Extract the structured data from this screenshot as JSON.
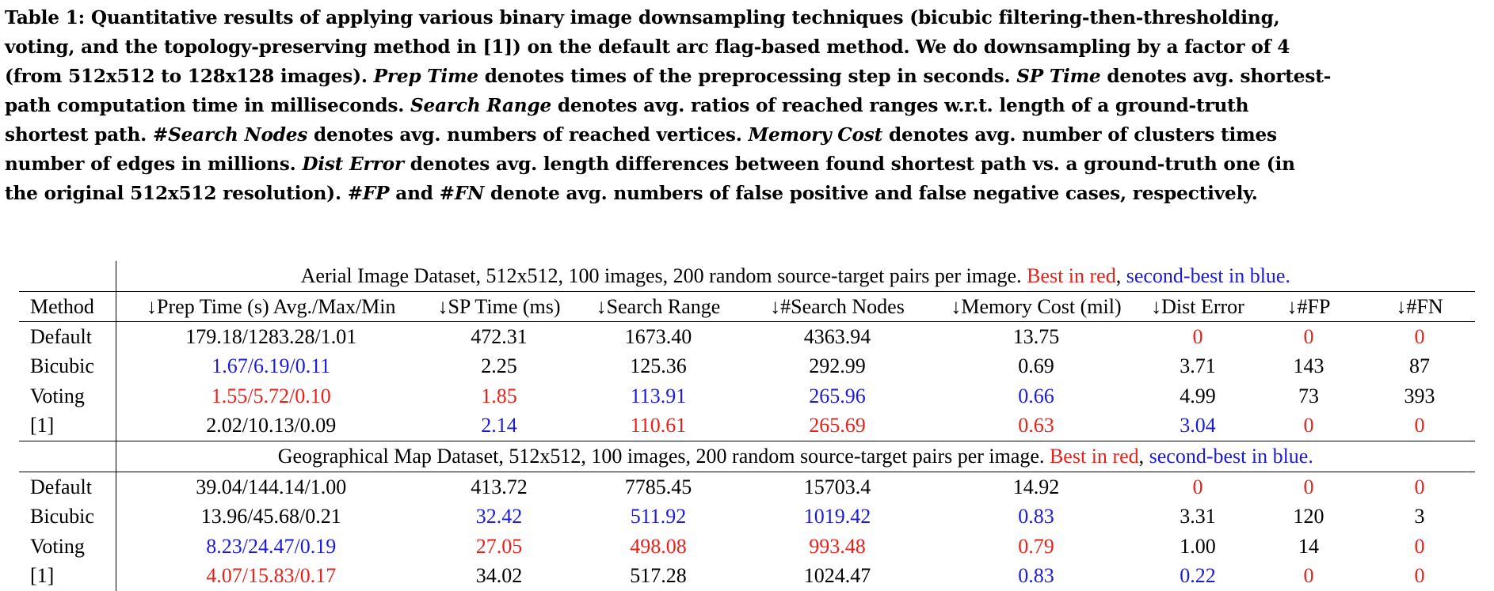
{
  "caption": {
    "lines": [
      [
        {
          "t": "Table 1: Quantitative results of applying various binary image downsampling techniques (bicubic filtering-then-thresholding,",
          "i": false
        }
      ],
      [
        {
          "t": "voting, and the topology-preserving method in [1]) on the default arc flag-based method. We do downsampling by a factor of 4",
          "i": false
        }
      ],
      [
        {
          "t": "(from 512x512 to 128x128 images). ",
          "i": false
        },
        {
          "t": "Prep Time",
          "i": true
        },
        {
          "t": " denotes times of the preprocessing step in seconds. ",
          "i": false
        },
        {
          "t": "SP Time",
          "i": true
        },
        {
          "t": " denotes avg. shortest-",
          "i": false
        }
      ],
      [
        {
          "t": "path computation time in milliseconds. ",
          "i": false
        },
        {
          "t": "Search Range",
          "i": true
        },
        {
          "t": " denotes avg. ratios of reached ranges w.r.t. length of a ground-truth",
          "i": false
        }
      ],
      [
        {
          "t": "shortest path. ",
          "i": false
        },
        {
          "t": "#Search Nodes",
          "i": true
        },
        {
          "t": " denotes avg. numbers of reached vertices. ",
          "i": false
        },
        {
          "t": "Memory Cost",
          "i": true
        },
        {
          "t": " denotes avg. number of clusters times",
          "i": false
        }
      ],
      [
        {
          "t": "number of edges in millions. ",
          "i": false
        },
        {
          "t": "Dist Error",
          "i": true
        },
        {
          "t": " denotes avg. length differences between found shortest path vs. a ground-truth one (in",
          "i": false
        }
      ],
      [
        {
          "t": "the original 512x512 resolution). ",
          "i": false
        },
        {
          "t": "#FP",
          "i": true
        },
        {
          "t": " and ",
          "i": false
        },
        {
          "t": "#FN",
          "i": true
        },
        {
          "t": " denote avg. numbers of false positive and false negative cases, respectively.",
          "i": false
        }
      ]
    ]
  },
  "table": {
    "columns": [
      "Method",
      "↓Prep Time (s) Avg./Max/Min",
      "↓SP Time (ms)",
      "↓Search Range",
      "↓#Search Nodes",
      "↓Memory Cost (mil)",
      "↓Dist Error",
      "↓#FP",
      "↓#FN"
    ],
    "legend": {
      "best": "Best in red",
      "sep": ", ",
      "second": "second-best in blue",
      "end": "."
    },
    "colors": {
      "best": "#e8221b",
      "second": "#1b1bd8",
      "normal": "#000000"
    },
    "datasets": [
      {
        "title": "Aerial Image Dataset, 512x512, 100 images, 200 random source-target pairs per image. ",
        "rows": [
          {
            "method": "Default",
            "cells": [
              {
                "v": "179.18/1283.28/1.01",
                "c": "black"
              },
              {
                "v": "472.31",
                "c": "black"
              },
              {
                "v": "1673.40",
                "c": "black"
              },
              {
                "v": "4363.94",
                "c": "black"
              },
              {
                "v": "13.75",
                "c": "black"
              },
              {
                "v": "0",
                "c": "red"
              },
              {
                "v": "0",
                "c": "red"
              },
              {
                "v": "0",
                "c": "red"
              }
            ]
          },
          {
            "method": "Bicubic",
            "cells": [
              {
                "v": "1.67/6.19/0.11",
                "c": "blue"
              },
              {
                "v": "2.25",
                "c": "black"
              },
              {
                "v": "125.36",
                "c": "black"
              },
              {
                "v": "292.99",
                "c": "black"
              },
              {
                "v": "0.69",
                "c": "black"
              },
              {
                "v": "3.71",
                "c": "black"
              },
              {
                "v": "143",
                "c": "black"
              },
              {
                "v": "87",
                "c": "black"
              }
            ]
          },
          {
            "method": "Voting",
            "cells": [
              {
                "v": "1.55/5.72/0.10",
                "c": "red"
              },
              {
                "v": "1.85",
                "c": "red"
              },
              {
                "v": "113.91",
                "c": "blue"
              },
              {
                "v": "265.96",
                "c": "blue"
              },
              {
                "v": "0.66",
                "c": "blue"
              },
              {
                "v": "4.99",
                "c": "black"
              },
              {
                "v": "73",
                "c": "black"
              },
              {
                "v": "393",
                "c": "black"
              }
            ]
          },
          {
            "method": "[1]",
            "cells": [
              {
                "v": "2.02/10.13/0.09",
                "c": "black"
              },
              {
                "v": "2.14",
                "c": "blue"
              },
              {
                "v": "110.61",
                "c": "red"
              },
              {
                "v": "265.69",
                "c": "red"
              },
              {
                "v": "0.63",
                "c": "red"
              },
              {
                "v": "3.04",
                "c": "blue"
              },
              {
                "v": "0",
                "c": "red"
              },
              {
                "v": "0",
                "c": "red"
              }
            ]
          }
        ]
      },
      {
        "title": "Geographical Map Dataset, 512x512, 100 images, 200 random source-target pairs per image. ",
        "rows": [
          {
            "method": "Default",
            "cells": [
              {
                "v": "39.04/144.14/1.00",
                "c": "black"
              },
              {
                "v": "413.72",
                "c": "black"
              },
              {
                "v": "7785.45",
                "c": "black"
              },
              {
                "v": "15703.4",
                "c": "black"
              },
              {
                "v": "14.92",
                "c": "black"
              },
              {
                "v": "0",
                "c": "red"
              },
              {
                "v": "0",
                "c": "red"
              },
              {
                "v": "0",
                "c": "red"
              }
            ]
          },
          {
            "method": "Bicubic",
            "cells": [
              {
                "v": "13.96/45.68/0.21",
                "c": "black"
              },
              {
                "v": "32.42",
                "c": "blue"
              },
              {
                "v": "511.92",
                "c": "blue"
              },
              {
                "v": "1019.42",
                "c": "blue"
              },
              {
                "v": "0.83",
                "c": "blue"
              },
              {
                "v": "3.31",
                "c": "black"
              },
              {
                "v": "120",
                "c": "black"
              },
              {
                "v": "3",
                "c": "black"
              }
            ]
          },
          {
            "method": "Voting",
            "cells": [
              {
                "v": "8.23/24.47/0.19",
                "c": "blue"
              },
              {
                "v": "27.05",
                "c": "red"
              },
              {
                "v": "498.08",
                "c": "red"
              },
              {
                "v": "993.48",
                "c": "red"
              },
              {
                "v": "0.79",
                "c": "red"
              },
              {
                "v": "1.00",
                "c": "black"
              },
              {
                "v": "14",
                "c": "black"
              },
              {
                "v": "0",
                "c": "red"
              }
            ]
          },
          {
            "method": "[1]",
            "cells": [
              {
                "v": "4.07/15.83/0.17",
                "c": "red"
              },
              {
                "v": "34.02",
                "c": "black"
              },
              {
                "v": "517.28",
                "c": "black"
              },
              {
                "v": "1024.47",
                "c": "black"
              },
              {
                "v": "0.83",
                "c": "blue"
              },
              {
                "v": "0.22",
                "c": "blue"
              },
              {
                "v": "0",
                "c": "red"
              },
              {
                "v": "0",
                "c": "red"
              }
            ]
          }
        ]
      }
    ]
  }
}
